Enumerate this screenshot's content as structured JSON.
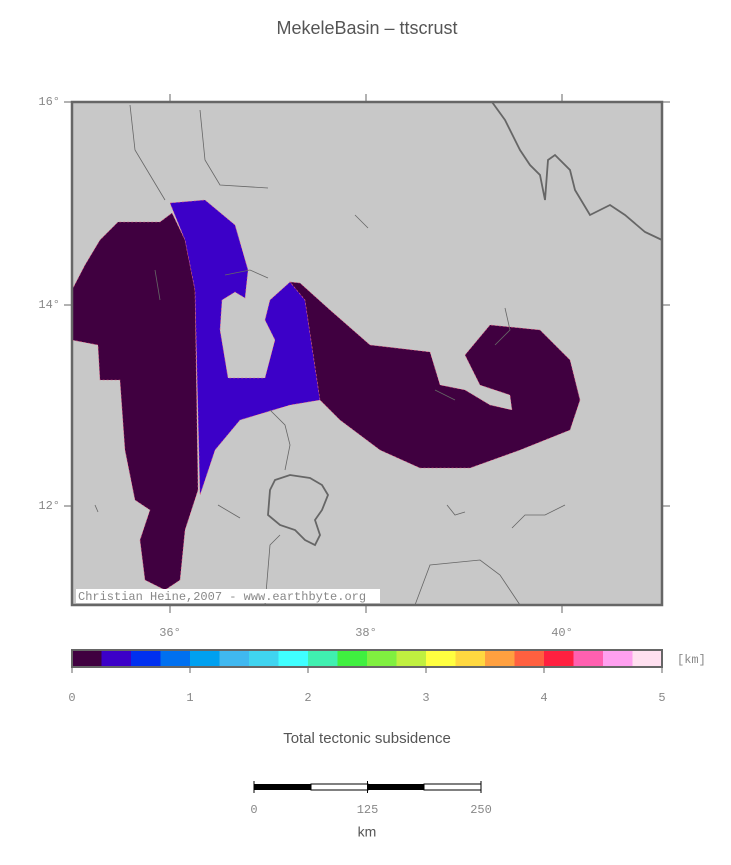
{
  "title": "MekeleBasin – ttscrust",
  "map": {
    "lat_labels": [
      "16°",
      "14°",
      "12°"
    ],
    "lon_labels": [
      "36°",
      "38°",
      "40°"
    ],
    "credit": "Christian Heine,2007 - www.earthbyte.org"
  },
  "colorbar": {
    "colors": [
      "#400040",
      "#3c00c8",
      "#0030f0",
      "#0070f0",
      "#00a0f0",
      "#40b8f0",
      "#40d4f0",
      "#40ffff",
      "#40f0b0",
      "#40f040",
      "#80f040",
      "#c0f040",
      "#ffff40",
      "#ffd840",
      "#ffa040",
      "#ff6040",
      "#ff2040",
      "#ff60b0",
      "#ffa0f0",
      "#ffe0f0"
    ],
    "ticks": [
      0,
      1,
      2,
      3,
      4,
      5
    ],
    "unit": "[km]",
    "label": "Total tectonic subsidence"
  },
  "scale_bar": {
    "ticks": [
      0,
      125,
      250
    ],
    "unit": "km"
  }
}
